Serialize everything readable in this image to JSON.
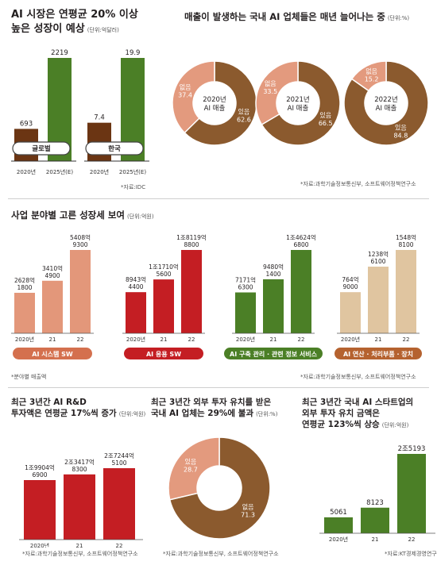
{
  "panel1": {
    "title_line1": "AI 시장은 연평균 20% 이상",
    "title_line2": "높은 성장이 예상",
    "unit": "(단위:억달러)",
    "source": "*자료:IDC",
    "colors": {
      "first": "#6b3513",
      "second": "#4b7f26"
    },
    "chart_data": [
      {
        "type": "bar",
        "label": "글로벌",
        "categories": [
          "2020년",
          "2025년(E)"
        ],
        "values": [
          693,
          2219
        ],
        "value_labels": [
          "693",
          "2219"
        ]
      },
      {
        "type": "bar",
        "label": "한국",
        "categories": [
          "2020년",
          "2025년(E)"
        ],
        "values": [
          7.4,
          19.9
        ],
        "value_labels": [
          "7.4",
          "19.9"
        ]
      }
    ]
  },
  "panel2": {
    "title": "매출이 발생하는 국내 AI 업체들은 매년 늘어나는 중",
    "unit": "(단위:%)",
    "source": "*자료:과학기술정보통신부, 소프트웨어정책연구소",
    "colors": {
      "loss": "#e39a7e",
      "profit": "#8b5a2e"
    },
    "chart_data": [
      {
        "type": "pie",
        "center_line1": "2020년",
        "center_line2": "AI 매출",
        "slices": [
          {
            "label": "없음",
            "value": 37.4
          },
          {
            "label": "있음",
            "value": 62.6
          }
        ]
      },
      {
        "type": "pie",
        "center_line1": "2021년",
        "center_line2": "AI 매출",
        "slices": [
          {
            "label": "없음",
            "value": 33.5
          },
          {
            "label": "있음",
            "value": 66.5
          }
        ]
      },
      {
        "type": "pie",
        "center_line1": "2022년",
        "center_line2": "AI 매출",
        "slices": [
          {
            "label": "없음",
            "value": 15.2
          },
          {
            "label": "있음",
            "value": 84.8
          }
        ]
      }
    ]
  },
  "panel3": {
    "title": "사업 분야별 고른 성장세 보여",
    "unit": "(단위:억원)",
    "footnote": "*분야별 매출액",
    "source": "*자료:과학기술정보통신부, 소프트웨어정책연구소",
    "chart_data": [
      {
        "type": "bar",
        "label": "AI 시스템 SW",
        "color": "#e3977a",
        "label_bg": "#d4704e",
        "categories": [
          "2020년",
          "21",
          "22"
        ],
        "values": [
          2628,
          3410,
          5408
        ],
        "value_labels": [
          [
            "2628억",
            "1800"
          ],
          [
            "3410억",
            "4900"
          ],
          [
            "5408억",
            "9300"
          ]
        ]
      },
      {
        "type": "bar",
        "label": "AI 응용 SW",
        "color": "#c41e23",
        "label_bg": "#c41e23",
        "categories": [
          "2020년",
          "21",
          "22"
        ],
        "values": [
          8943,
          11710,
          18119
        ],
        "value_labels": [
          [
            "8943억",
            "4400"
          ],
          [
            "1조1710억",
            "5600"
          ],
          [
            "1조8119억",
            "8800"
          ]
        ]
      },
      {
        "type": "bar",
        "label": "AI 구축 관리 · 관련 정보 서비스",
        "color": "#4b7f26",
        "label_bg": "#4b7f26",
        "categories": [
          "2020년",
          "21",
          "22"
        ],
        "values": [
          7171,
          9480,
          14624
        ],
        "value_labels": [
          [
            "7171억",
            "6300"
          ],
          [
            "9480억",
            "1400"
          ],
          [
            "1조4624억",
            "6800"
          ]
        ]
      },
      {
        "type": "bar",
        "label": "AI 연산 · 처리부품 · 장치",
        "color": "#e0c5a0",
        "label_bg": "#b5622f",
        "categories": [
          "2020년",
          "21",
          "22"
        ],
        "values": [
          764,
          1238,
          1548
        ],
        "value_labels": [
          [
            "764억",
            "9000"
          ],
          [
            "1238억",
            "6100"
          ],
          [
            "1548억",
            "8100"
          ]
        ]
      }
    ]
  },
  "panel4": {
    "title_line1": "최근 3년간 AI R&D",
    "title_line2": "투자액은 연평균 17%씩 증가",
    "unit": "(단위:억원)",
    "source": "*자료:과학기술정보통신부, 소프트웨어정책연구소",
    "color": "#c41e23",
    "chart_data": {
      "type": "bar",
      "categories": [
        "2020년",
        "21",
        "22"
      ],
      "values": [
        19904,
        23417,
        27244
      ],
      "value_labels": [
        [
          "1조9904억",
          "6900"
        ],
        [
          "2조3417억",
          "8300"
        ],
        [
          "2조7244억",
          "5100"
        ]
      ]
    }
  },
  "panel5": {
    "title_line1": "최근 3년간 외부 투자 유치를 받은",
    "title_line2": "국내 AI 업체는 29%에 불과",
    "unit": "(단위:%)",
    "source": "*자료:과학기술정보통신부, 소프트웨어정책연구소",
    "colors": {
      "loss": "#e39a7e",
      "profit": "#8b5a2e"
    },
    "chart_data": {
      "type": "pie",
      "slices": [
        {
          "label": "있음",
          "value": 28.7
        },
        {
          "label": "없음",
          "value": 71.3
        }
      ]
    }
  },
  "panel6": {
    "title_line1": "최근 3년간 국내 AI 스타트업의",
    "title_line2": "외부 투자 유치 금액은",
    "title_line3": "연평균 123%씩 상승",
    "unit": "(단위:억원)",
    "source": "*자료:KT경제경영연구소",
    "color": "#4b7f26",
    "chart_data": {
      "type": "bar",
      "categories": [
        "2020년",
        "21",
        "22"
      ],
      "values": [
        5061,
        8123,
        25193
      ],
      "value_labels": [
        "5061",
        "8123",
        "2조5193"
      ]
    }
  }
}
